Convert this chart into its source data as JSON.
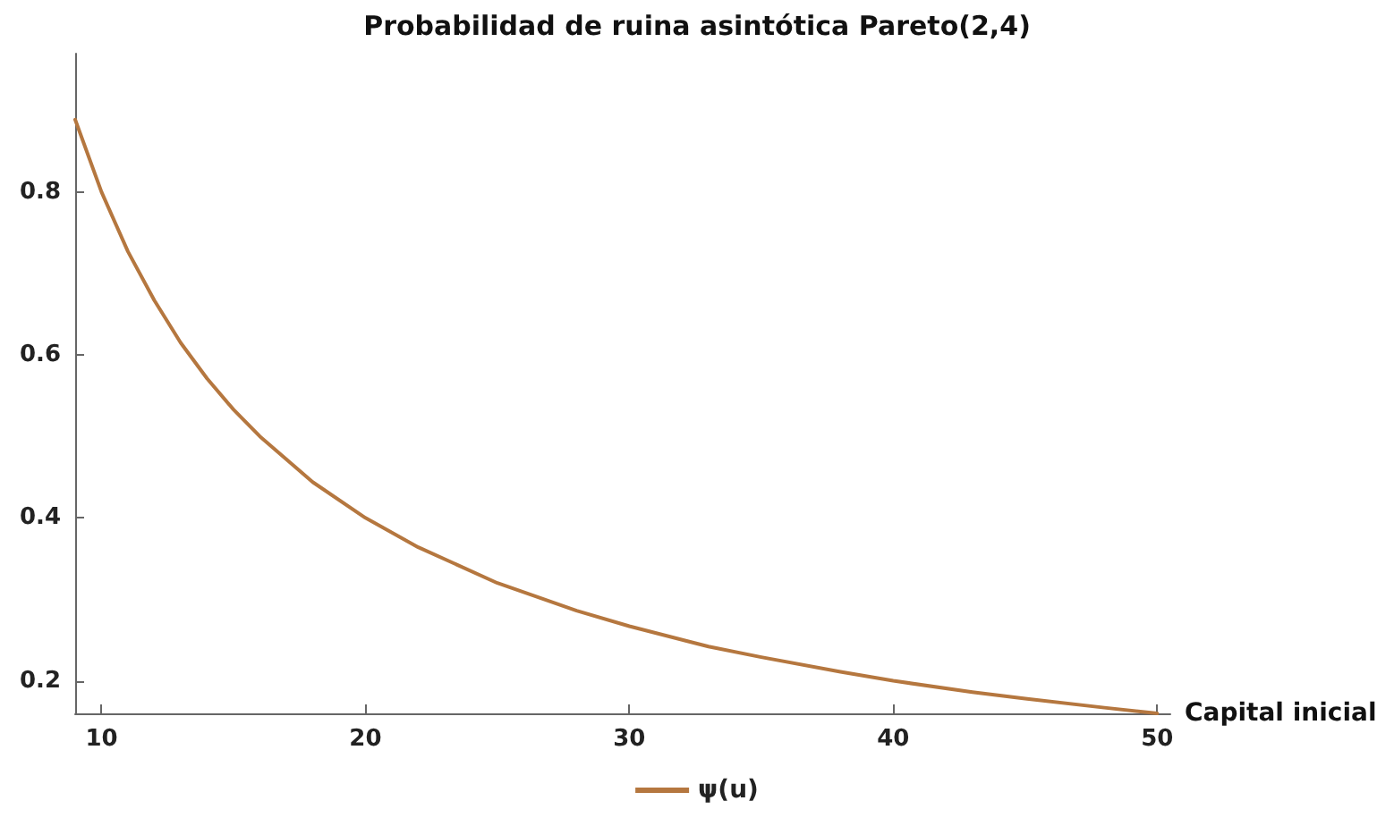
{
  "chart_data": {
    "type": "line",
    "title": "Probabilidad de ruina asintótica Pareto(2,4)",
    "xlabel": "Capital inicial",
    "x": [
      9,
      10,
      11,
      12,
      13,
      14,
      15,
      16,
      18,
      20,
      22,
      25,
      28,
      30,
      33,
      35,
      38,
      40,
      43,
      45,
      48,
      50
    ],
    "series": [
      {
        "name": "ψ(u)",
        "color": "#b5773f",
        "values": [
          0.889,
          0.8,
          0.727,
          0.667,
          0.615,
          0.571,
          0.533,
          0.5,
          0.444,
          0.4,
          0.364,
          0.32,
          0.286,
          0.267,
          0.242,
          0.229,
          0.211,
          0.2,
          0.186,
          0.178,
          0.167,
          0.16
        ]
      }
    ],
    "xlim": [
      9,
      50.5
    ],
    "ylim": [
      0.16,
      0.97
    ],
    "xticks": [
      10,
      20,
      30,
      40,
      50
    ],
    "yticks": [
      0.2,
      0.4,
      0.6,
      0.8
    ],
    "grid": false,
    "legend": "bottom",
    "marker": "none",
    "line_style": "solid"
  }
}
